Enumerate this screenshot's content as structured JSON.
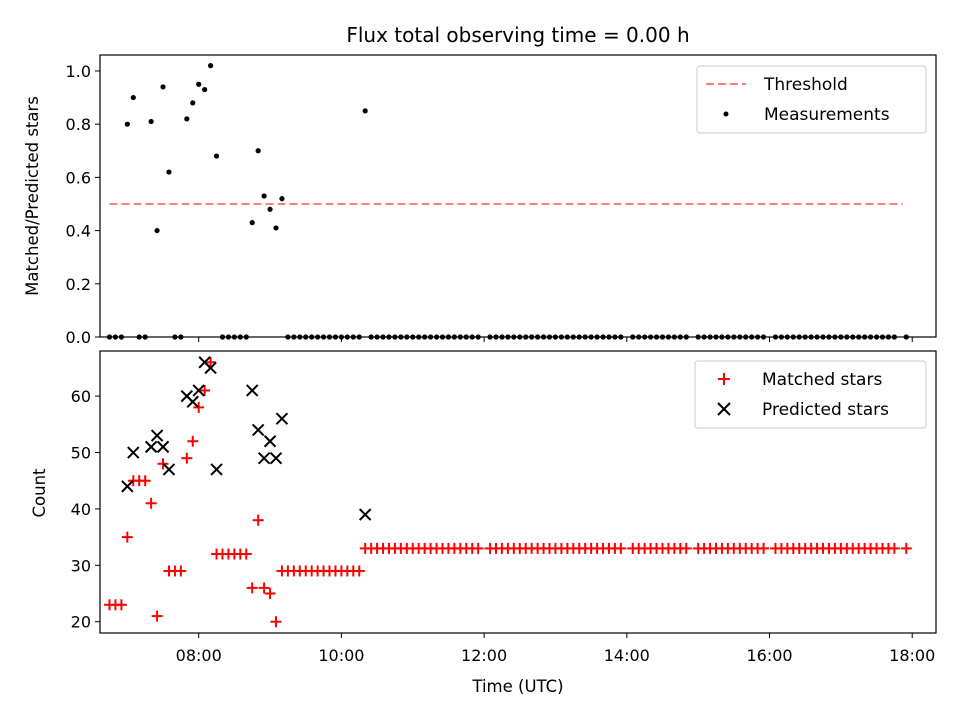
{
  "chart_data": [
    {
      "type": "scatter",
      "title": "Flux total observing time = 0.00 h",
      "xlabel": "",
      "ylabel": "Matched/Predicted stars",
      "xlim": [
        "06:37",
        "18:20"
      ],
      "ylim": [
        0,
        1.06
      ],
      "yticks": [
        0.0,
        0.2,
        0.4,
        0.6,
        0.8,
        1.0
      ],
      "ytick_labels": [
        "0.0",
        "0.2",
        "0.4",
        "0.6",
        "0.8",
        "1.0"
      ],
      "xticks": [
        "08:00",
        "10:00",
        "12:00",
        "14:00",
        "16:00",
        "18:00"
      ],
      "legend_position": "top-right",
      "threshold": {
        "name": "Threshold",
        "value": 0.5,
        "x_start": "06:45",
        "x_end": "17:52",
        "color": "#ff7f7f"
      },
      "series": [
        {
          "name": "Measurements",
          "color": "#000000",
          "points": [
            [
              "07:00",
              0.8
            ],
            [
              "07:05",
              0.9
            ],
            [
              "07:20",
              0.81
            ],
            [
              "07:25",
              0.4
            ],
            [
              "07:30",
              0.94
            ],
            [
              "07:35",
              0.62
            ],
            [
              "07:50",
              0.82
            ],
            [
              "07:55",
              0.88
            ],
            [
              "08:00",
              0.95
            ],
            [
              "08:05",
              0.93
            ],
            [
              "08:10",
              1.02
            ],
            [
              "08:15",
              0.68
            ],
            [
              "08:45",
              0.43
            ],
            [
              "08:50",
              0.7
            ],
            [
              "08:55",
              0.53
            ],
            [
              "09:00",
              0.48
            ],
            [
              "09:05",
              0.41
            ],
            [
              "09:10",
              0.52
            ],
            [
              "10:20",
              0.85
            ]
          ],
          "zero_points": [
            "06:45",
            "06:50",
            "06:55",
            "07:10",
            "07:15",
            "07:40",
            "07:45",
            "08:20",
            "08:25",
            "08:30",
            "08:35",
            "08:40",
            "09:15",
            "09:20",
            "09:25",
            "09:30",
            "09:35",
            "09:40",
            "09:45",
            "09:50",
            "09:55",
            "10:00",
            "10:05",
            "10:10",
            "10:15",
            "10:25",
            "10:30",
            "10:35",
            "10:40",
            "10:45",
            "10:50",
            "10:55",
            "11:00",
            "11:05",
            "11:10",
            "11:15",
            "11:20",
            "11:25",
            "11:30",
            "11:35",
            "11:40",
            "11:45",
            "11:50",
            "11:55",
            "12:05",
            "12:10",
            "12:15",
            "12:20",
            "12:25",
            "12:30",
            "12:35",
            "12:40",
            "12:45",
            "12:50",
            "12:55",
            "13:00",
            "13:05",
            "13:10",
            "13:15",
            "13:20",
            "13:25",
            "13:30",
            "13:35",
            "13:40",
            "13:45",
            "13:50",
            "13:55",
            "14:05",
            "14:10",
            "14:15",
            "14:20",
            "14:25",
            "14:30",
            "14:35",
            "14:40",
            "14:45",
            "14:50",
            "15:00",
            "15:05",
            "15:10",
            "15:15",
            "15:20",
            "15:25",
            "15:30",
            "15:35",
            "15:40",
            "15:45",
            "15:50",
            "15:55",
            "16:05",
            "16:10",
            "16:15",
            "16:20",
            "16:25",
            "16:30",
            "16:35",
            "16:40",
            "16:45",
            "16:50",
            "16:55",
            "17:00",
            "17:05",
            "17:10",
            "17:15",
            "17:20",
            "17:25",
            "17:30",
            "17:35",
            "17:40",
            "17:45",
            "17:55"
          ]
        }
      ]
    },
    {
      "type": "scatter",
      "title": "",
      "xlabel": "Time (UTC)",
      "ylabel": "Count",
      "xlim": [
        "06:37",
        "18:20"
      ],
      "ylim": [
        18,
        68
      ],
      "yticks": [
        20,
        30,
        40,
        50,
        60
      ],
      "ytick_labels": [
        "20",
        "30",
        "40",
        "50",
        "60"
      ],
      "xticks": [
        "08:00",
        "10:00",
        "12:00",
        "14:00",
        "16:00",
        "18:00"
      ],
      "xtick_labels": [
        "08:00",
        "10:00",
        "12:00",
        "14:00",
        "16:00",
        "18:00"
      ],
      "legend_position": "top-right",
      "series": [
        {
          "name": "Matched stars",
          "marker": "plus",
          "color": "#ff0000",
          "points": [
            [
              "06:45",
              23
            ],
            [
              "06:50",
              23
            ],
            [
              "06:55",
              23
            ],
            [
              "07:00",
              35
            ],
            [
              "07:05",
              45
            ],
            [
              "07:10",
              45
            ],
            [
              "07:15",
              45
            ],
            [
              "07:20",
              41
            ],
            [
              "07:25",
              21
            ],
            [
              "07:30",
              48
            ],
            [
              "07:35",
              29
            ],
            [
              "07:40",
              29
            ],
            [
              "07:45",
              29
            ],
            [
              "07:50",
              49
            ],
            [
              "07:55",
              52
            ],
            [
              "08:00",
              58
            ],
            [
              "08:05",
              61
            ],
            [
              "08:10",
              66
            ],
            [
              "08:15",
              32
            ],
            [
              "08:20",
              32
            ],
            [
              "08:25",
              32
            ],
            [
              "08:30",
              32
            ],
            [
              "08:35",
              32
            ],
            [
              "08:40",
              32
            ],
            [
              "08:45",
              26
            ],
            [
              "08:50",
              38
            ],
            [
              "08:55",
              26
            ],
            [
              "09:00",
              25
            ],
            [
              "09:05",
              20
            ],
            [
              "09:10",
              29
            ],
            [
              "09:15",
              29
            ],
            [
              "09:20",
              29
            ],
            [
              "09:25",
              29
            ],
            [
              "09:30",
              29
            ],
            [
              "09:35",
              29
            ],
            [
              "09:40",
              29
            ],
            [
              "09:45",
              29
            ],
            [
              "09:50",
              29
            ],
            [
              "09:55",
              29
            ],
            [
              "10:00",
              29
            ],
            [
              "10:05",
              29
            ],
            [
              "10:10",
              29
            ],
            [
              "10:15",
              29
            ],
            [
              "10:20",
              33
            ],
            [
              "10:25",
              33
            ],
            [
              "10:30",
              33
            ],
            [
              "10:35",
              33
            ],
            [
              "10:40",
              33
            ],
            [
              "10:45",
              33
            ],
            [
              "10:50",
              33
            ],
            [
              "10:55",
              33
            ],
            [
              "11:00",
              33
            ],
            [
              "11:05",
              33
            ],
            [
              "11:10",
              33
            ],
            [
              "11:15",
              33
            ],
            [
              "11:20",
              33
            ],
            [
              "11:25",
              33
            ],
            [
              "11:30",
              33
            ],
            [
              "11:35",
              33
            ],
            [
              "11:40",
              33
            ],
            [
              "11:45",
              33
            ],
            [
              "11:50",
              33
            ],
            [
              "11:55",
              33
            ],
            [
              "12:05",
              33
            ],
            [
              "12:10",
              33
            ],
            [
              "12:15",
              33
            ],
            [
              "12:20",
              33
            ],
            [
              "12:25",
              33
            ],
            [
              "12:30",
              33
            ],
            [
              "12:35",
              33
            ],
            [
              "12:40",
              33
            ],
            [
              "12:45",
              33
            ],
            [
              "12:50",
              33
            ],
            [
              "12:55",
              33
            ],
            [
              "13:00",
              33
            ],
            [
              "13:05",
              33
            ],
            [
              "13:10",
              33
            ],
            [
              "13:15",
              33
            ],
            [
              "13:20",
              33
            ],
            [
              "13:25",
              33
            ],
            [
              "13:30",
              33
            ],
            [
              "13:35",
              33
            ],
            [
              "13:40",
              33
            ],
            [
              "13:45",
              33
            ],
            [
              "13:50",
              33
            ],
            [
              "13:55",
              33
            ],
            [
              "14:05",
              33
            ],
            [
              "14:10",
              33
            ],
            [
              "14:15",
              33
            ],
            [
              "14:20",
              33
            ],
            [
              "14:25",
              33
            ],
            [
              "14:30",
              33
            ],
            [
              "14:35",
              33
            ],
            [
              "14:40",
              33
            ],
            [
              "14:45",
              33
            ],
            [
              "14:50",
              33
            ],
            [
              "15:00",
              33
            ],
            [
              "15:05",
              33
            ],
            [
              "15:10",
              33
            ],
            [
              "15:15",
              33
            ],
            [
              "15:20",
              33
            ],
            [
              "15:25",
              33
            ],
            [
              "15:30",
              33
            ],
            [
              "15:35",
              33
            ],
            [
              "15:40",
              33
            ],
            [
              "15:45",
              33
            ],
            [
              "15:50",
              33
            ],
            [
              "15:55",
              33
            ],
            [
              "16:05",
              33
            ],
            [
              "16:10",
              33
            ],
            [
              "16:15",
              33
            ],
            [
              "16:20",
              33
            ],
            [
              "16:25",
              33
            ],
            [
              "16:30",
              33
            ],
            [
              "16:35",
              33
            ],
            [
              "16:40",
              33
            ],
            [
              "16:45",
              33
            ],
            [
              "16:50",
              33
            ],
            [
              "16:55",
              33
            ],
            [
              "17:00",
              33
            ],
            [
              "17:05",
              33
            ],
            [
              "17:10",
              33
            ],
            [
              "17:15",
              33
            ],
            [
              "17:20",
              33
            ],
            [
              "17:25",
              33
            ],
            [
              "17:30",
              33
            ],
            [
              "17:35",
              33
            ],
            [
              "17:40",
              33
            ],
            [
              "17:45",
              33
            ],
            [
              "17:55",
              33
            ]
          ]
        },
        {
          "name": "Predicted stars",
          "marker": "x",
          "color": "#000000",
          "points": [
            [
              "07:00",
              44
            ],
            [
              "07:05",
              50
            ],
            [
              "07:20",
              51
            ],
            [
              "07:25",
              53
            ],
            [
              "07:30",
              51
            ],
            [
              "07:35",
              47
            ],
            [
              "07:50",
              60
            ],
            [
              "07:55",
              59
            ],
            [
              "08:00",
              61
            ],
            [
              "08:05",
              66
            ],
            [
              "08:10",
              65
            ],
            [
              "08:15",
              47
            ],
            [
              "08:45",
              61
            ],
            [
              "08:50",
              54
            ],
            [
              "08:55",
              49
            ],
            [
              "09:00",
              52
            ],
            [
              "09:05",
              49
            ],
            [
              "09:10",
              56
            ],
            [
              "10:20",
              39
            ]
          ]
        }
      ]
    }
  ]
}
